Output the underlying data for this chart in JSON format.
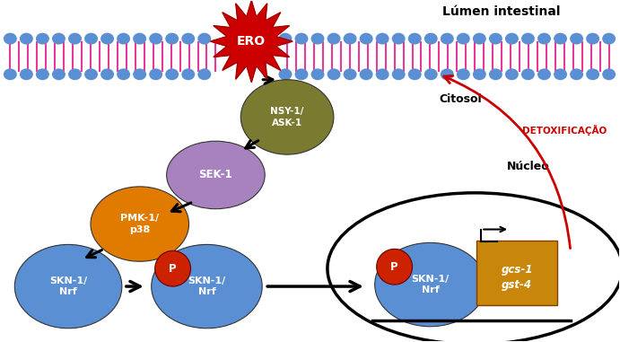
{
  "bg_color": "#ffffff",
  "membrane_pink": "#E8399A",
  "membrane_blue": "#5B8FD4",
  "ero_color": "#CC0000",
  "ero_label": "ERO",
  "nsy1_color": "#7A7A30",
  "nsy1_label": "NSY-1/\nASK-1",
  "sek1_color": "#A882BE",
  "sek1_label": "SEK-1",
  "pmk1_color": "#E07B00",
  "pmk1_label": "PMK-1/\np38",
  "skn_color": "#5B8FD4",
  "skn_label": "SKN-1/\nNrf",
  "p_color": "#CC2200",
  "gene_box_color": "#C8860A",
  "gene_box_label": "gcs-1\ngst-4",
  "label_lumen": "Lúmen intestinal",
  "label_citosol": "Citosol",
  "label_nucleo": "Núcleo",
  "label_detox": "DETOXIFICAÇÃO",
  "label_detox_color": "#CC0000"
}
